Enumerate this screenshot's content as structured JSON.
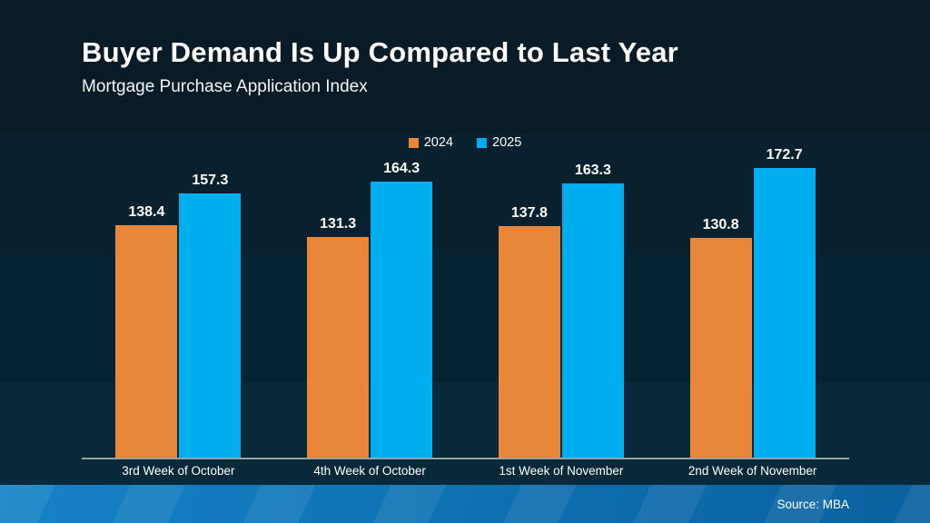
{
  "header": {
    "title": "Buyer Demand Is Up Compared to Last Year",
    "subtitle": "Mortgage Purchase Application Index"
  },
  "footer": {
    "source": "Source: MBA"
  },
  "chart_data": {
    "type": "bar",
    "title": "Buyer Demand Is Up Compared to Last Year",
    "subtitle": "Mortgage Purchase Application Index",
    "categories": [
      "3rd Week of October",
      "4th Week of October",
      "1st Week of November",
      "2nd Week of November"
    ],
    "series": [
      {
        "name": "2024",
        "color": "#E8873A",
        "values": [
          138.4,
          131.3,
          137.8,
          130.8
        ]
      },
      {
        "name": "2025",
        "color": "#00AEEF",
        "values": [
          157.3,
          164.3,
          163.3,
          172.7
        ]
      }
    ],
    "ylim": [
      0,
      180
    ],
    "grid": false,
    "legend_position": "top-center",
    "value_labels": true,
    "value_label_format": "0.1f",
    "source": "Source: MBA"
  }
}
